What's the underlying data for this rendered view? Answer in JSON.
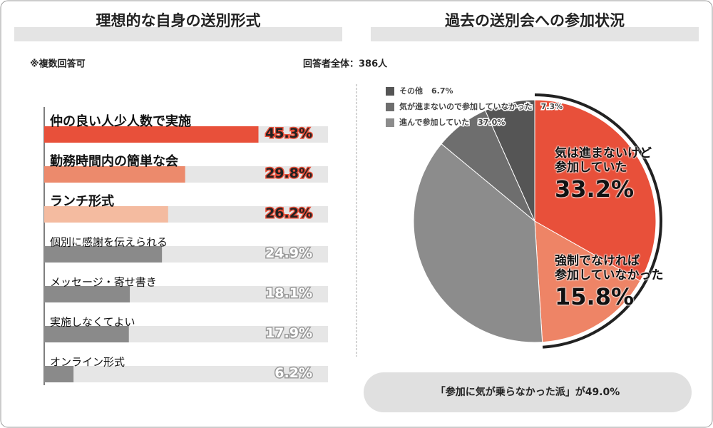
{
  "chart_data": [
    {
      "type": "hbar",
      "title": "理想的な自身の送別形式",
      "note": "※複数回答可",
      "categories": [
        "仲の良い人少人数で実施",
        "勤務時間内の簡単な会",
        "ランチ形式",
        "個別に感謝を伝えられる",
        "メッセージ・寄せ書き",
        "実施しなくてよい",
        "オンライン形式"
      ],
      "values": [
        45.3,
        29.8,
        26.2,
        24.9,
        18.1,
        17.9,
        6.2
      ],
      "value_labels": [
        "45.3%",
        "29.8%",
        "26.2%",
        "24.9%",
        "18.1%",
        "17.9%",
        "6.2%"
      ],
      "colors": [
        "#e8503a",
        "#ec8a6c",
        "#f4bba0",
        "#8a8a8a",
        "#8a8a8a",
        "#8a8a8a",
        "#8a8a8a"
      ],
      "track_color": "#e6e6e6",
      "xlim": [
        0,
        60
      ]
    },
    {
      "type": "pie",
      "title": "過去の送別会への参加状況",
      "note": "回答者全体：386人",
      "categories": [
        "気は進まないけど\n参加していた",
        "強制でなければ\n参加していなかった",
        "進んで参加していた",
        "気が進まないので参加していなかった",
        "その他"
      ],
      "values": [
        33.2,
        15.8,
        37.0,
        7.3,
        6.7
      ],
      "value_labels": [
        "33.2%",
        "15.8%",
        "37.0%",
        "7.3%",
        "6.7%"
      ],
      "colors": [
        "#e8503a",
        "#ee8466",
        "#8c8c8c",
        "#6e6e6e",
        "#555555"
      ],
      "callout": "「参加に気が乗らなかった派」が49.0%"
    }
  ]
}
